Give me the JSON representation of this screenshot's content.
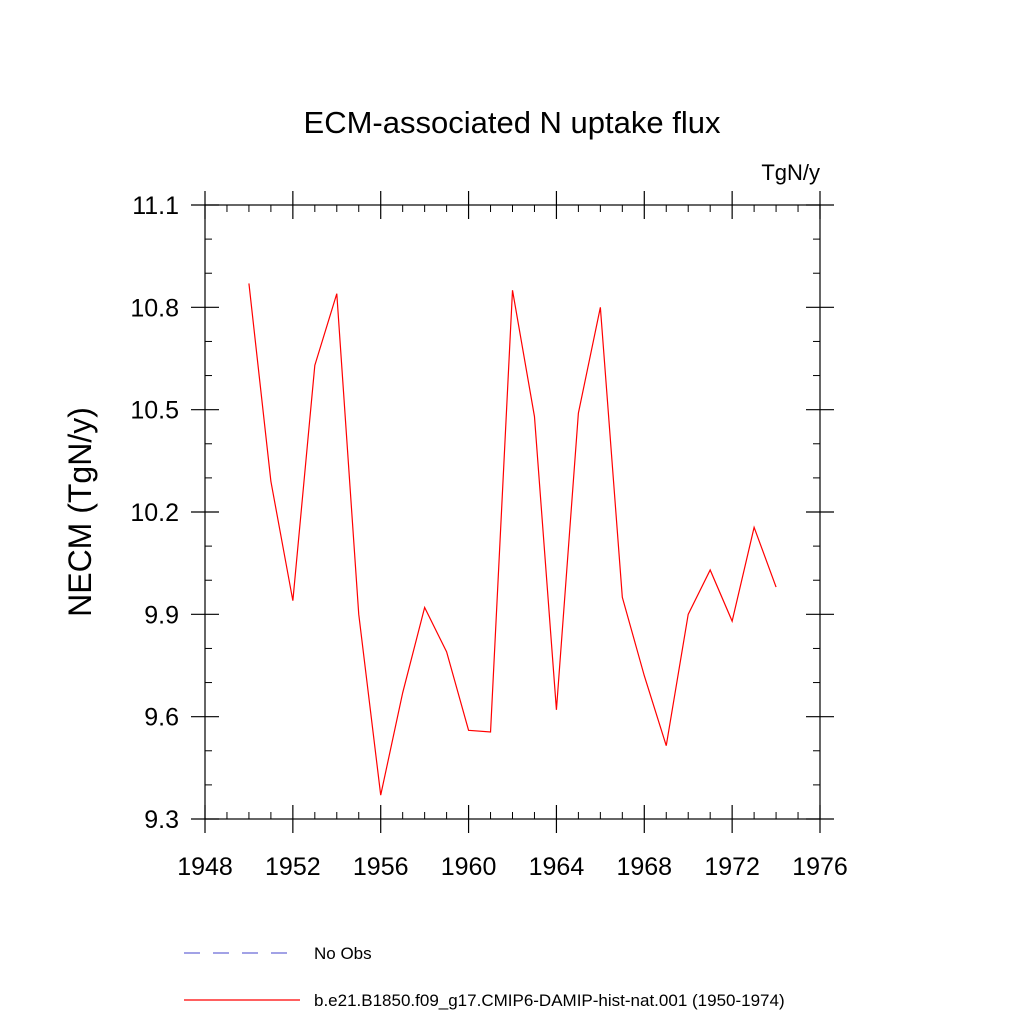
{
  "chart_data": {
    "type": "line",
    "title": "ECM-associated N uptake flux",
    "units_label": "TgN/y",
    "ylabel": "NECM  (TgN/y)",
    "xlabel": "",
    "xlim": [
      1948,
      1976
    ],
    "ylim": [
      9.3,
      11.1
    ],
    "x_ticks": [
      1948,
      1952,
      1956,
      1960,
      1964,
      1968,
      1972,
      1976
    ],
    "x_tick_labels": [
      "1948",
      "1952",
      "1956",
      "1960",
      "1964",
      "1968",
      "1972",
      "1976"
    ],
    "y_ticks": [
      9.3,
      9.6,
      9.9,
      10.2,
      10.5,
      10.8,
      11.1
    ],
    "y_tick_labels": [
      "9.3",
      "9.6",
      "9.9",
      "10.2",
      "10.5",
      "10.8",
      "11.1"
    ],
    "x_minor_step": 1,
    "y_minor_step": 0.1,
    "grid": false,
    "legend_position": "bottom",
    "series": [
      {
        "name": "b.e21.B1850.f09_g17.CMIP6-DAMIP-hist-nat.001 (1950-1974)",
        "color": "#ff0000",
        "dash": "solid",
        "x": [
          1950,
          1951,
          1952,
          1953,
          1954,
          1955,
          1956,
          1957,
          1958,
          1959,
          1960,
          1961,
          1962,
          1963,
          1964,
          1965,
          1966,
          1967,
          1968,
          1969,
          1970,
          1971,
          1972,
          1973,
          1974
        ],
        "y": [
          10.87,
          10.29,
          9.94,
          10.63,
          10.84,
          9.9,
          9.37,
          9.67,
          9.92,
          9.79,
          9.56,
          9.555,
          10.85,
          10.48,
          9.62,
          10.49,
          10.8,
          9.95,
          9.72,
          9.515,
          9.9,
          10.03,
          9.88,
          10.155,
          9.98
        ]
      }
    ],
    "legend": [
      {
        "label": "No Obs",
        "color": "#6b6bd6",
        "dash": "dashed"
      },
      {
        "label": "b.e21.B1850.f09_g17.CMIP6-DAMIP-hist-nat.001 (1950-1974)",
        "color": "#ff0000",
        "dash": "solid"
      }
    ]
  }
}
